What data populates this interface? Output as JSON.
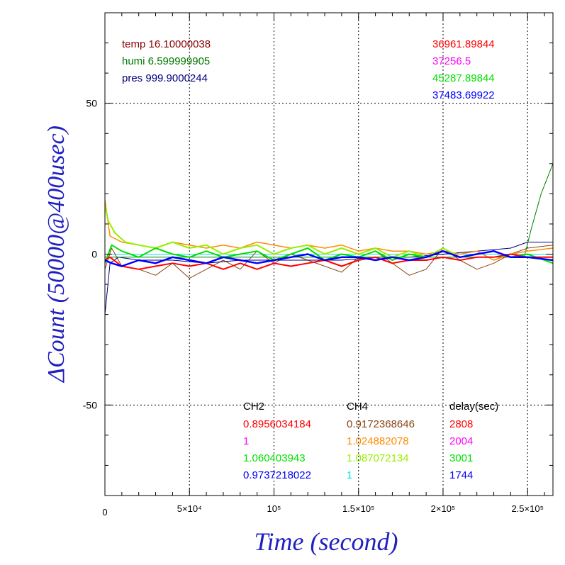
{
  "chart_data": {
    "type": "line",
    "title": "",
    "xlabel": "Time (second)",
    "ylabel": "ΔCount (50000@400usec)",
    "xlim": [
      0,
      265000
    ],
    "ylim": [
      -80,
      80
    ],
    "x_ticks": [
      {
        "value": 0,
        "label": "0"
      },
      {
        "value": 50000,
        "label": "5×10⁴"
      },
      {
        "value": 100000,
        "label": "10⁵"
      },
      {
        "value": 150000,
        "label": "1.5×10⁵"
      },
      {
        "value": 200000,
        "label": "2×10⁵"
      },
      {
        "value": 250000,
        "label": "2.5×10⁵"
      }
    ],
    "y_ticks": [
      {
        "value": 50,
        "label": "50"
      },
      {
        "value": 0,
        "label": "0"
      },
      {
        "value": -50,
        "label": "-50"
      }
    ],
    "grid": true,
    "env_info": [
      {
        "text": "temp 16.10000038",
        "color": "#8b0000"
      },
      {
        "text": "humi 6.599999905",
        "color": "#007a00"
      },
      {
        "text": "pres 999.9000244",
        "color": "#000080"
      }
    ],
    "rates": [
      {
        "text": "36961.89844",
        "color": "#ff0000"
      },
      {
        "text": "37256.5",
        "color": "#ff00ff"
      },
      {
        "text": "45287.89844",
        "color": "#00e000"
      },
      {
        "text": "37483.69922",
        "color": "#0000ff"
      }
    ],
    "table": {
      "headers": [
        "CH2",
        "CH4",
        "delay(sec)"
      ],
      "rows": [
        [
          {
            "text": "0.8956034184",
            "color": "#ff0000"
          },
          {
            "text": "0.9172368646",
            "color": "#8b4513"
          },
          {
            "text": "2808",
            "color": "#ff0000"
          }
        ],
        [
          {
            "text": "1",
            "color": "#ff00ff"
          },
          {
            "text": "1.024882078",
            "color": "#ff8c00"
          },
          {
            "text": "2004",
            "color": "#ff00ff"
          }
        ],
        [
          {
            "text": "1.060403943",
            "color": "#00e000"
          },
          {
            "text": "1.087072134",
            "color": "#99ee00"
          },
          {
            "text": "3001",
            "color": "#00e000"
          }
        ],
        [
          {
            "text": "0.9737218022",
            "color": "#0000ff"
          },
          {
            "text": "1",
            "color": "#00e5ee"
          },
          {
            "text": "1744",
            "color": "#0000ff"
          }
        ]
      ]
    },
    "series": [
      {
        "color": "#ff00ff",
        "width": 1,
        "x": [
          0,
          50000,
          100000,
          150000,
          200000,
          265000
        ],
        "y": [
          0,
          0,
          0,
          0,
          0,
          0
        ]
      },
      {
        "color": "#00e5ee",
        "width": 1,
        "x": [
          0,
          265000
        ],
        "y": [
          0,
          0
        ]
      },
      {
        "color": "#8b4513",
        "width": 1,
        "x": [
          0,
          4000,
          10000,
          20000,
          30000,
          40000,
          50000,
          60000,
          70000,
          80000,
          90000,
          100000,
          110000,
          120000,
          130000,
          140000,
          150000,
          160000,
          170000,
          180000,
          190000,
          200000,
          210000,
          220000,
          230000,
          240000,
          250000,
          265000
        ],
        "y": [
          -5,
          2,
          -4,
          -5,
          -7,
          -3,
          -8,
          -5,
          -2,
          -5,
          1,
          -3,
          0,
          -2,
          -4,
          -6,
          -1,
          1,
          -3,
          -7,
          -5,
          2,
          -2,
          -5,
          -3,
          0,
          2,
          3
        ]
      },
      {
        "color": "#000080",
        "width": 1,
        "x": [
          0,
          3000,
          8000,
          20000,
          40000,
          60000,
          80000,
          100000,
          120000,
          140000,
          160000,
          180000,
          200000,
          220000,
          240000,
          250000,
          265000
        ],
        "y": [
          -20,
          -3,
          -1,
          -2,
          -2,
          -3,
          -2,
          -2,
          -2,
          -2,
          -1,
          -1,
          0,
          1,
          2,
          4,
          4
        ]
      },
      {
        "color": "#008000",
        "width": 1,
        "x": [
          0,
          50000,
          100000,
          150000,
          200000,
          240000,
          248000,
          252000,
          258000,
          265000
        ],
        "y": [
          -1,
          -1,
          -1,
          -1,
          -1,
          -1,
          -1,
          8,
          20,
          30
        ]
      },
      {
        "color": "#ff8c00",
        "width": 1.5,
        "x": [
          0,
          3000,
          10000,
          20000,
          30000,
          40000,
          50000,
          60000,
          70000,
          80000,
          90000,
          100000,
          110000,
          120000,
          130000,
          140000,
          150000,
          160000,
          170000,
          180000,
          190000,
          200000,
          210000,
          220000,
          230000,
          240000,
          250000,
          265000
        ],
        "y": [
          18,
          6,
          4,
          3,
          2,
          4,
          3,
          2,
          3,
          2,
          4,
          3,
          2,
          3,
          2,
          3,
          1,
          2,
          1,
          1,
          0,
          1,
          0,
          1,
          -2,
          0,
          1,
          2
        ]
      },
      {
        "color": "#99ee00",
        "width": 2,
        "x": [
          0,
          2000,
          6000,
          12000,
          20000,
          30000,
          40000,
          50000,
          60000,
          70000,
          80000,
          90000,
          100000,
          110000,
          120000,
          130000,
          140000,
          150000,
          160000,
          170000,
          180000,
          190000,
          200000,
          210000,
          220000,
          230000,
          240000,
          250000,
          265000
        ],
        "y": [
          16,
          11,
          7,
          4,
          3,
          2,
          4,
          2,
          3,
          0,
          2,
          3,
          0,
          2,
          3,
          0,
          2,
          0,
          2,
          -1,
          1,
          -1,
          2,
          -1,
          0,
          1,
          -1,
          -1,
          -2
        ]
      },
      {
        "color": "#00e000",
        "width": 2,
        "x": [
          0,
          4000,
          10000,
          20000,
          30000,
          40000,
          50000,
          60000,
          70000,
          80000,
          90000,
          100000,
          110000,
          120000,
          130000,
          140000,
          150000,
          160000,
          170000,
          180000,
          190000,
          200000,
          210000,
          220000,
          230000,
          240000,
          250000,
          265000
        ],
        "y": [
          -3,
          3,
          1,
          -1,
          2,
          0,
          -1,
          1,
          -1,
          0,
          1,
          -2,
          0,
          2,
          -2,
          0,
          -1,
          1,
          -2,
          0,
          -1,
          1,
          -1,
          0,
          1,
          -1,
          0,
          -3
        ]
      },
      {
        "color": "#ff0000",
        "width": 2,
        "x": [
          0,
          3000,
          10000,
          20000,
          30000,
          40000,
          50000,
          60000,
          70000,
          80000,
          90000,
          100000,
          110000,
          120000,
          130000,
          140000,
          150000,
          160000,
          170000,
          180000,
          190000,
          200000,
          210000,
          220000,
          230000,
          240000,
          250000,
          265000
        ],
        "y": [
          -2,
          -1,
          -4,
          -5,
          -4,
          -3,
          -4,
          -3,
          -5,
          -3,
          -5,
          -3,
          -4,
          -3,
          -2,
          -4,
          -2,
          -1,
          -3,
          -2,
          -2,
          -1,
          -2,
          -1,
          -1,
          0,
          -1,
          -1
        ]
      },
      {
        "color": "#0000ff",
        "width": 2.5,
        "x": [
          0,
          4000,
          10000,
          20000,
          30000,
          40000,
          50000,
          60000,
          70000,
          80000,
          90000,
          100000,
          110000,
          120000,
          130000,
          140000,
          150000,
          160000,
          170000,
          180000,
          190000,
          200000,
          210000,
          220000,
          230000,
          240000,
          250000,
          265000
        ],
        "y": [
          -2,
          -3,
          -4,
          -2,
          -3,
          -1,
          -2,
          -3,
          -1,
          -2,
          -3,
          -2,
          -1,
          0,
          -2,
          -1,
          -1,
          -2,
          -1,
          -2,
          -1,
          1,
          -1,
          0,
          1,
          -1,
          -1,
          -2
        ]
      }
    ]
  }
}
